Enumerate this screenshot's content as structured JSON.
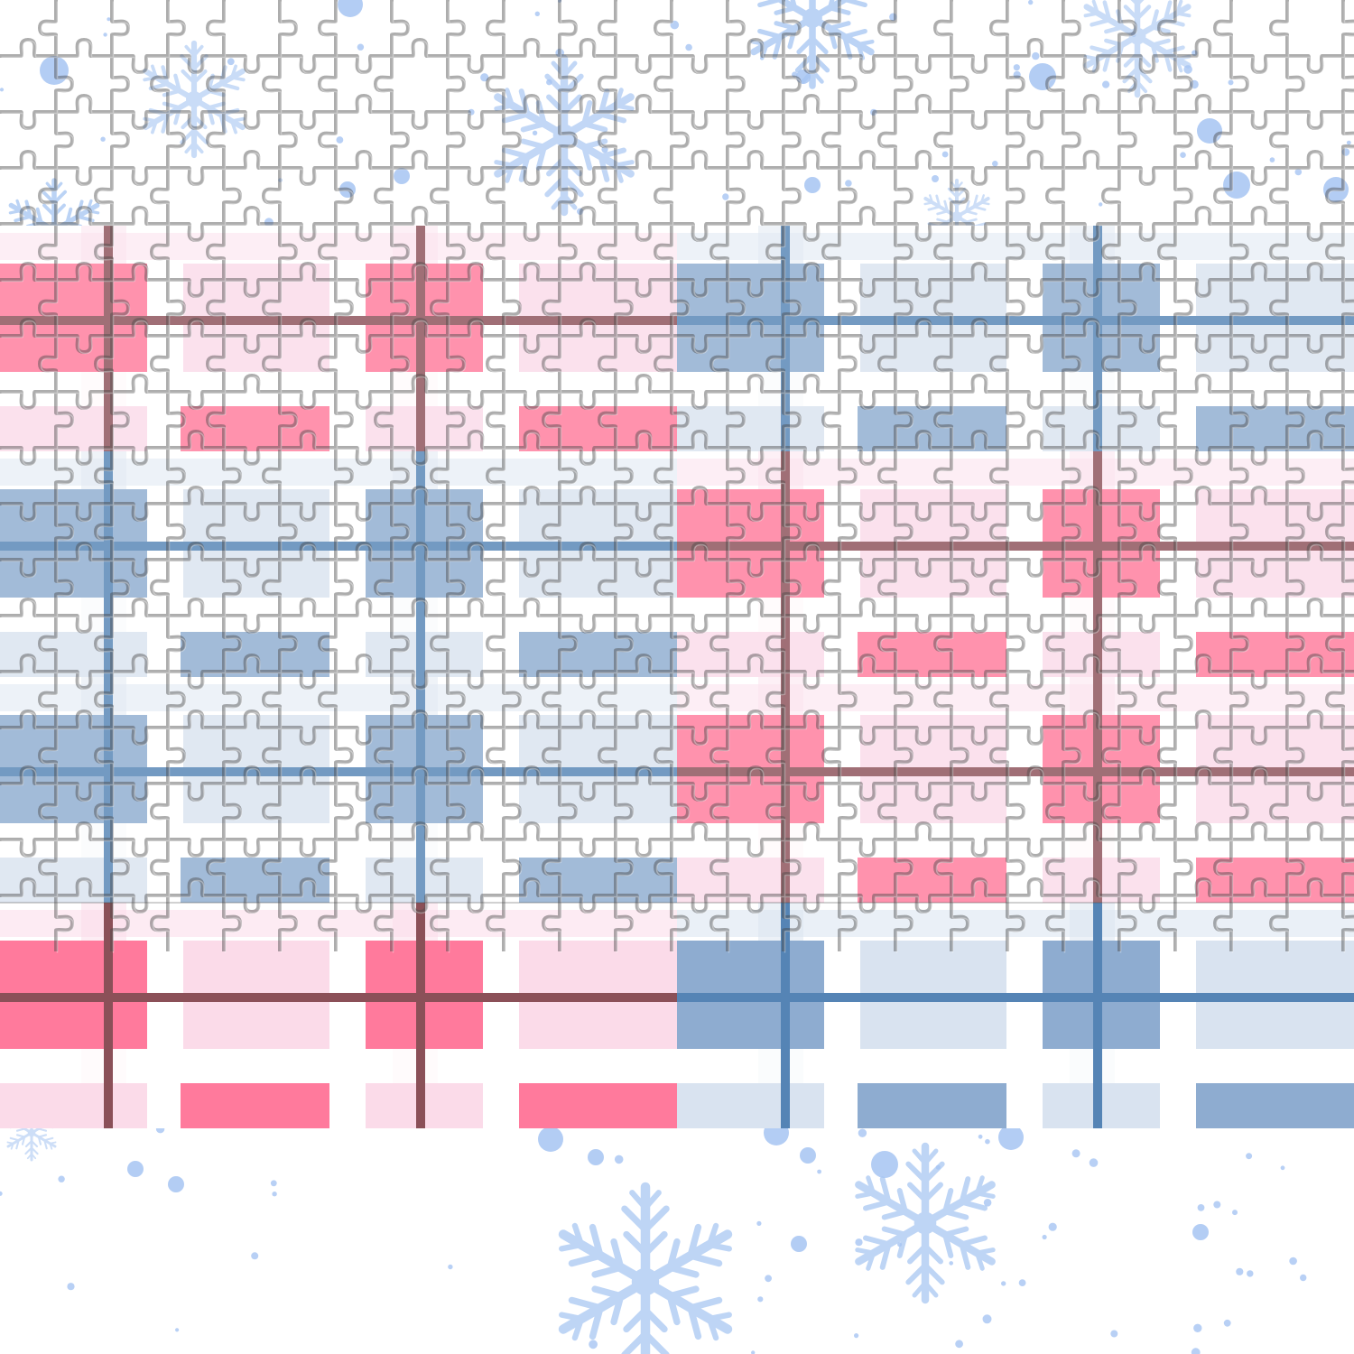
{
  "colors": {
    "background": "#ffffff",
    "pink_strong": "#ff7a9c",
    "pink_light": "#fbdbe9",
    "maroon_line": "#8b5058",
    "blue_strong": "#8eacd0",
    "blue_light": "#d9e3f0",
    "blue_line": "#5584b5",
    "snowflake": "#b8d1f5",
    "snow_dot": "#a6c4f2",
    "puzzle_line": "#4a4a4a"
  },
  "artwork": {
    "kind": "decorative-image",
    "motifs": [
      "snowflake",
      "plaid-pink",
      "plaid-blue",
      "jigsaw-puzzle-overlay"
    ]
  }
}
